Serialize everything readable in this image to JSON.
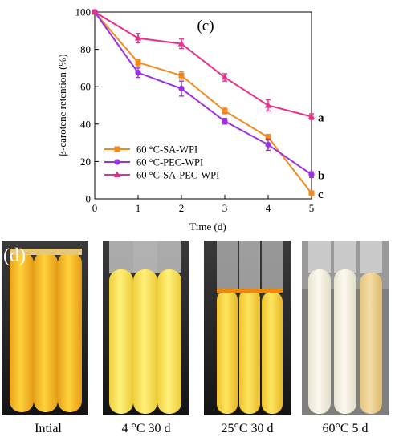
{
  "chart_data": {
    "type": "line",
    "panel_label": "(c)",
    "xlabel": "Time (d)",
    "ylabel": "β-carotene retention (%)",
    "xlim": [
      0,
      5
    ],
    "ylim": [
      0,
      100
    ],
    "x_ticks": [
      "0",
      "1",
      "2",
      "3",
      "4",
      "5"
    ],
    "y_ticks": [
      "0",
      "20",
      "40",
      "60",
      "80",
      "100"
    ],
    "legend_position": "center-left",
    "x": [
      0,
      1,
      2,
      3,
      4,
      5
    ],
    "series": [
      {
        "name": "60 °C-SA-WPI",
        "color": "#f28a1e",
        "marker": "square",
        "values": [
          100,
          73,
          66,
          47,
          33,
          3
        ],
        "errors": [
          0,
          1.8,
          2,
          2,
          1.5,
          1
        ],
        "end_label": "c"
      },
      {
        "name": "60 °C-PEC-WPI",
        "color": "#9b30e0",
        "marker": "circle",
        "values": [
          100,
          67.5,
          59,
          41.5,
          29,
          13
        ],
        "errors": [
          0,
          2.5,
          4,
          1.5,
          3,
          1.5
        ],
        "end_label": "b"
      },
      {
        "name": "60 °C-SA-PEC-WPI",
        "color": "#ea2f8a",
        "marker": "triangle",
        "values": [
          100,
          86,
          83,
          65,
          50,
          44
        ],
        "errors": [
          0,
          2.5,
          2.5,
          2,
          3,
          1.5
        ],
        "end_label": "a"
      }
    ]
  },
  "photos": {
    "panel_label": "(d)",
    "captions": [
      "Intial",
      "4 °C 30 d",
      "25°C  30 d",
      "60°C  5 d"
    ]
  }
}
